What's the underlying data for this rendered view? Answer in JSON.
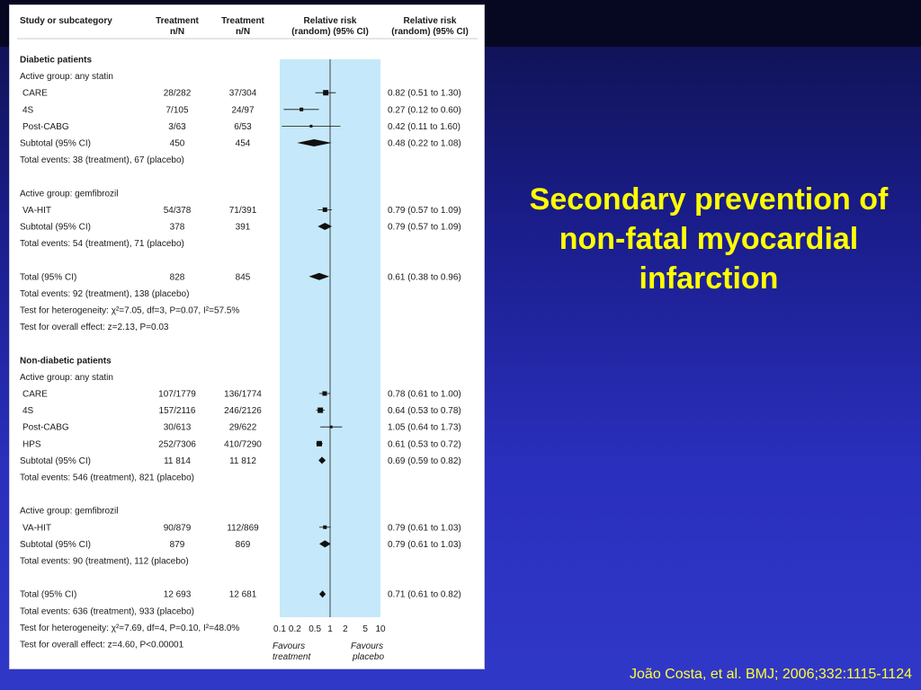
{
  "slide": {
    "title": "Secondary prevention of non-fatal myocardial infarction",
    "citation": "João Costa, et al. BMJ; 2006;332:1115-1124",
    "title_color": "#ffff00"
  },
  "forest": {
    "headers": {
      "study": "Study or subcategory",
      "treatment_line1": "Treatment",
      "treatment_line2": "n/N",
      "control_line1": "Treatment",
      "control_line2": "n/N",
      "rr_plot_line1": "Relative risk",
      "rr_plot_line2": "(random) (95% CI)",
      "rr_text_line1": "Relative risk",
      "rr_text_line2": "(random) (95% CI)"
    },
    "favours_left_line1": "Favours",
    "favours_left_line2": "treatment",
    "favours_right_line1": "Favours",
    "favours_right_line2": "placebo",
    "axis_ticks": [
      0.1,
      0.2,
      0.5,
      1,
      2,
      5,
      10
    ],
    "axis_tick_labels": [
      "0.1",
      "0.2",
      "0.5",
      "1",
      "2",
      "5",
      "10"
    ],
    "band_color": "#c5e9fa"
  },
  "chart_data": {
    "type": "forest",
    "scale": "log",
    "xlim": [
      0.1,
      10
    ],
    "null_line": 1,
    "rows": [
      {
        "kind": "section",
        "label": "Diabetic patients"
      },
      {
        "kind": "text",
        "label": "Active group: any statin"
      },
      {
        "kind": "study",
        "label": "CARE",
        "treat": "28/282",
        "ctrl": "37/304",
        "rr": 0.82,
        "lo": 0.51,
        "hi": 1.3,
        "rr_text": "0.82 (0.51 to 1.30)",
        "w": 6
      },
      {
        "kind": "study",
        "label": "4S",
        "treat": "7/105",
        "ctrl": "24/97",
        "rr": 0.27,
        "lo": 0.12,
        "hi": 0.6,
        "rr_text": "0.27 (0.12 to 0.60)",
        "w": 4
      },
      {
        "kind": "study",
        "label": "Post-CABG",
        "treat": "3/63",
        "ctrl": "6/53",
        "rr": 0.42,
        "lo": 0.11,
        "hi": 1.6,
        "rr_text": "0.42 (0.11 to 1.60)",
        "w": 3
      },
      {
        "kind": "subtotal",
        "label": "Subtotal (95% CI)",
        "treat": "450",
        "ctrl": "454",
        "rr": 0.48,
        "lo": 0.22,
        "hi": 1.08,
        "rr_text": "0.48 (0.22 to 1.08)"
      },
      {
        "kind": "text",
        "label": "Total events: 38 (treatment), 67 (placebo)"
      },
      {
        "kind": "blank"
      },
      {
        "kind": "text",
        "label": "Active group: gemfibrozil"
      },
      {
        "kind": "study",
        "label": "VA-HIT",
        "treat": "54/378",
        "ctrl": "71/391",
        "rr": 0.79,
        "lo": 0.57,
        "hi": 1.09,
        "rr_text": "0.79 (0.57 to 1.09)",
        "w": 5
      },
      {
        "kind": "subtotal",
        "label": "Subtotal (95% CI)",
        "treat": "378",
        "ctrl": "391",
        "rr": 0.79,
        "lo": 0.57,
        "hi": 1.09,
        "rr_text": "0.79 (0.57 to 1.09)"
      },
      {
        "kind": "text",
        "label": "Total events: 54 (treatment), 71 (placebo)"
      },
      {
        "kind": "blank"
      },
      {
        "kind": "total",
        "label": "Total (95% CI)",
        "treat": "828",
        "ctrl": "845",
        "rr": 0.61,
        "lo": 0.38,
        "hi": 0.96,
        "rr_text": "0.61 (0.38 to 0.96)"
      },
      {
        "kind": "text",
        "label": "Total events: 92 (treatment), 138 (placebo)"
      },
      {
        "kind": "text",
        "label": "Test for heterogeneity: χ²=7.05, df=3, P=0.07, I²=57.5%"
      },
      {
        "kind": "text",
        "label": "Test for overall effect: z=2.13, P=0.03"
      },
      {
        "kind": "blank"
      },
      {
        "kind": "section",
        "label": "Non-diabetic patients"
      },
      {
        "kind": "text",
        "label": "Active group: any statin"
      },
      {
        "kind": "study",
        "label": "CARE",
        "treat": "107/1779",
        "ctrl": "136/1774",
        "rr": 0.78,
        "lo": 0.61,
        "hi": 1.0,
        "rr_text": "0.78 (0.61 to 1.00)",
        "w": 5
      },
      {
        "kind": "study",
        "label": "4S",
        "treat": "157/2116",
        "ctrl": "246/2126",
        "rr": 0.64,
        "lo": 0.53,
        "hi": 0.78,
        "rr_text": "0.64 (0.53 to 0.78)",
        "w": 6
      },
      {
        "kind": "study",
        "label": "Post-CABG",
        "treat": "30/613",
        "ctrl": "29/622",
        "rr": 1.05,
        "lo": 0.64,
        "hi": 1.73,
        "rr_text": "1.05 (0.64 to 1.73)",
        "w": 3
      },
      {
        "kind": "study",
        "label": "HPS",
        "treat": "252/7306",
        "ctrl": "410/7290",
        "rr": 0.61,
        "lo": 0.53,
        "hi": 0.72,
        "rr_text": "0.61 (0.53 to 0.72)",
        "w": 6
      },
      {
        "kind": "subtotal",
        "label": "Subtotal (95% CI)",
        "treat": "11 814",
        "ctrl": "11 812",
        "rr": 0.69,
        "lo": 0.59,
        "hi": 0.82,
        "rr_text": "0.69 (0.59 to 0.82)"
      },
      {
        "kind": "text",
        "label": "Total events: 546 (treatment), 821 (placebo)"
      },
      {
        "kind": "blank"
      },
      {
        "kind": "text",
        "label": "Active group: gemfibrozil"
      },
      {
        "kind": "study",
        "label": "VA-HIT",
        "treat": "90/879",
        "ctrl": "112/869",
        "rr": 0.79,
        "lo": 0.61,
        "hi": 1.03,
        "rr_text": "0.79 (0.61 to 1.03)",
        "w": 4
      },
      {
        "kind": "subtotal",
        "label": "Subtotal (95% CI)",
        "treat": "879",
        "ctrl": "869",
        "rr": 0.79,
        "lo": 0.61,
        "hi": 1.03,
        "rr_text": "0.79 (0.61 to 1.03)"
      },
      {
        "kind": "text",
        "label": "Total events: 90 (treatment), 112 (placebo)"
      },
      {
        "kind": "blank"
      },
      {
        "kind": "total",
        "label": "Total (95% CI)",
        "treat": "12 693",
        "ctrl": "12 681",
        "rr": 0.71,
        "lo": 0.61,
        "hi": 0.82,
        "rr_text": "0.71 (0.61 to 0.82)"
      },
      {
        "kind": "text",
        "label": "Total events: 636 (treatment), 933 (placebo)"
      },
      {
        "kind": "text",
        "label": "Test for heterogeneity: χ²=7.69, df=4, P=0.10, I²=48.0%"
      },
      {
        "kind": "text",
        "label": "Test for overall effect: z=4.60, P<0.00001"
      }
    ]
  }
}
